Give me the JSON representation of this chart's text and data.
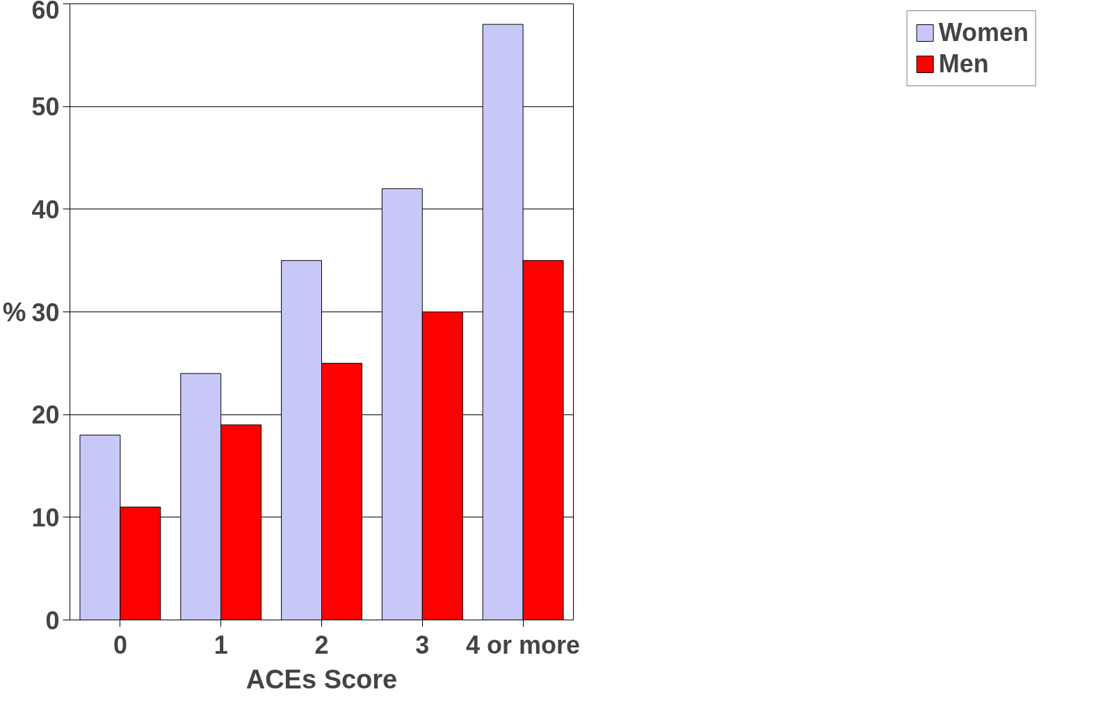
{
  "chart_data": {
    "type": "bar",
    "xlabel": "ACEs Score",
    "ylabel": "%",
    "categories": [
      "0",
      "1",
      "2",
      "3",
      "4 or more"
    ],
    "series": [
      {
        "name": "Women",
        "color": "#c8c8f8",
        "values": [
          18,
          24,
          35,
          42,
          58
        ]
      },
      {
        "name": "Men",
        "color": "#ff0000",
        "values": [
          11,
          19,
          25,
          30,
          35
        ]
      }
    ],
    "ylim": [
      0,
      60
    ],
    "yticks": [
      0,
      10,
      20,
      30,
      40,
      50,
      60
    ],
    "grid": "y",
    "legend": "right"
  }
}
